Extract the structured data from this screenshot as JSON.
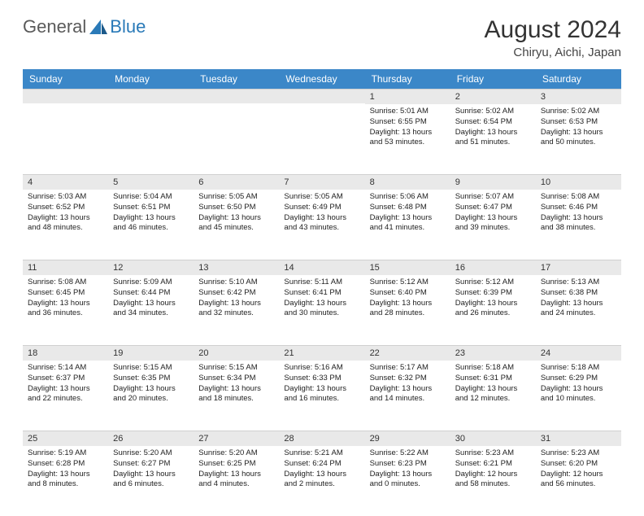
{
  "logo": {
    "general": "General",
    "blue": "Blue"
  },
  "title": "August 2024",
  "location": "Chiryu, Aichi, Japan",
  "colors": {
    "header_bg": "#3b87c8",
    "header_fg": "#ffffff",
    "daynum_bg": "#e9e9e9",
    "logo_gray": "#5a5a5a",
    "logo_blue": "#2a7ab8"
  },
  "weekdays": [
    "Sunday",
    "Monday",
    "Tuesday",
    "Wednesday",
    "Thursday",
    "Friday",
    "Saturday"
  ],
  "weeks": [
    [
      null,
      null,
      null,
      null,
      {
        "day": "1",
        "sunrise": "Sunrise: 5:01 AM",
        "sunset": "Sunset: 6:55 PM",
        "daylight": "Daylight: 13 hours and 53 minutes."
      },
      {
        "day": "2",
        "sunrise": "Sunrise: 5:02 AM",
        "sunset": "Sunset: 6:54 PM",
        "daylight": "Daylight: 13 hours and 51 minutes."
      },
      {
        "day": "3",
        "sunrise": "Sunrise: 5:02 AM",
        "sunset": "Sunset: 6:53 PM",
        "daylight": "Daylight: 13 hours and 50 minutes."
      }
    ],
    [
      {
        "day": "4",
        "sunrise": "Sunrise: 5:03 AM",
        "sunset": "Sunset: 6:52 PM",
        "daylight": "Daylight: 13 hours and 48 minutes."
      },
      {
        "day": "5",
        "sunrise": "Sunrise: 5:04 AM",
        "sunset": "Sunset: 6:51 PM",
        "daylight": "Daylight: 13 hours and 46 minutes."
      },
      {
        "day": "6",
        "sunrise": "Sunrise: 5:05 AM",
        "sunset": "Sunset: 6:50 PM",
        "daylight": "Daylight: 13 hours and 45 minutes."
      },
      {
        "day": "7",
        "sunrise": "Sunrise: 5:05 AM",
        "sunset": "Sunset: 6:49 PM",
        "daylight": "Daylight: 13 hours and 43 minutes."
      },
      {
        "day": "8",
        "sunrise": "Sunrise: 5:06 AM",
        "sunset": "Sunset: 6:48 PM",
        "daylight": "Daylight: 13 hours and 41 minutes."
      },
      {
        "day": "9",
        "sunrise": "Sunrise: 5:07 AM",
        "sunset": "Sunset: 6:47 PM",
        "daylight": "Daylight: 13 hours and 39 minutes."
      },
      {
        "day": "10",
        "sunrise": "Sunrise: 5:08 AM",
        "sunset": "Sunset: 6:46 PM",
        "daylight": "Daylight: 13 hours and 38 minutes."
      }
    ],
    [
      {
        "day": "11",
        "sunrise": "Sunrise: 5:08 AM",
        "sunset": "Sunset: 6:45 PM",
        "daylight": "Daylight: 13 hours and 36 minutes."
      },
      {
        "day": "12",
        "sunrise": "Sunrise: 5:09 AM",
        "sunset": "Sunset: 6:44 PM",
        "daylight": "Daylight: 13 hours and 34 minutes."
      },
      {
        "day": "13",
        "sunrise": "Sunrise: 5:10 AM",
        "sunset": "Sunset: 6:42 PM",
        "daylight": "Daylight: 13 hours and 32 minutes."
      },
      {
        "day": "14",
        "sunrise": "Sunrise: 5:11 AM",
        "sunset": "Sunset: 6:41 PM",
        "daylight": "Daylight: 13 hours and 30 minutes."
      },
      {
        "day": "15",
        "sunrise": "Sunrise: 5:12 AM",
        "sunset": "Sunset: 6:40 PM",
        "daylight": "Daylight: 13 hours and 28 minutes."
      },
      {
        "day": "16",
        "sunrise": "Sunrise: 5:12 AM",
        "sunset": "Sunset: 6:39 PM",
        "daylight": "Daylight: 13 hours and 26 minutes."
      },
      {
        "day": "17",
        "sunrise": "Sunrise: 5:13 AM",
        "sunset": "Sunset: 6:38 PM",
        "daylight": "Daylight: 13 hours and 24 minutes."
      }
    ],
    [
      {
        "day": "18",
        "sunrise": "Sunrise: 5:14 AM",
        "sunset": "Sunset: 6:37 PM",
        "daylight": "Daylight: 13 hours and 22 minutes."
      },
      {
        "day": "19",
        "sunrise": "Sunrise: 5:15 AM",
        "sunset": "Sunset: 6:35 PM",
        "daylight": "Daylight: 13 hours and 20 minutes."
      },
      {
        "day": "20",
        "sunrise": "Sunrise: 5:15 AM",
        "sunset": "Sunset: 6:34 PM",
        "daylight": "Daylight: 13 hours and 18 minutes."
      },
      {
        "day": "21",
        "sunrise": "Sunrise: 5:16 AM",
        "sunset": "Sunset: 6:33 PM",
        "daylight": "Daylight: 13 hours and 16 minutes."
      },
      {
        "day": "22",
        "sunrise": "Sunrise: 5:17 AM",
        "sunset": "Sunset: 6:32 PM",
        "daylight": "Daylight: 13 hours and 14 minutes."
      },
      {
        "day": "23",
        "sunrise": "Sunrise: 5:18 AM",
        "sunset": "Sunset: 6:31 PM",
        "daylight": "Daylight: 13 hours and 12 minutes."
      },
      {
        "day": "24",
        "sunrise": "Sunrise: 5:18 AM",
        "sunset": "Sunset: 6:29 PM",
        "daylight": "Daylight: 13 hours and 10 minutes."
      }
    ],
    [
      {
        "day": "25",
        "sunrise": "Sunrise: 5:19 AM",
        "sunset": "Sunset: 6:28 PM",
        "daylight": "Daylight: 13 hours and 8 minutes."
      },
      {
        "day": "26",
        "sunrise": "Sunrise: 5:20 AM",
        "sunset": "Sunset: 6:27 PM",
        "daylight": "Daylight: 13 hours and 6 minutes."
      },
      {
        "day": "27",
        "sunrise": "Sunrise: 5:20 AM",
        "sunset": "Sunset: 6:25 PM",
        "daylight": "Daylight: 13 hours and 4 minutes."
      },
      {
        "day": "28",
        "sunrise": "Sunrise: 5:21 AM",
        "sunset": "Sunset: 6:24 PM",
        "daylight": "Daylight: 13 hours and 2 minutes."
      },
      {
        "day": "29",
        "sunrise": "Sunrise: 5:22 AM",
        "sunset": "Sunset: 6:23 PM",
        "daylight": "Daylight: 13 hours and 0 minutes."
      },
      {
        "day": "30",
        "sunrise": "Sunrise: 5:23 AM",
        "sunset": "Sunset: 6:21 PM",
        "daylight": "Daylight: 12 hours and 58 minutes."
      },
      {
        "day": "31",
        "sunrise": "Sunrise: 5:23 AM",
        "sunset": "Sunset: 6:20 PM",
        "daylight": "Daylight: 12 hours and 56 minutes."
      }
    ]
  ]
}
